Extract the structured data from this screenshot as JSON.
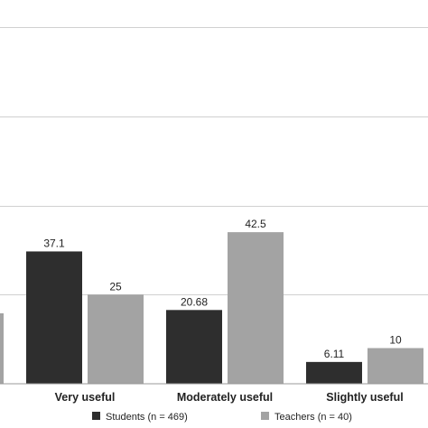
{
  "chart_data": {
    "type": "bar",
    "categories": [
      "Very useful",
      "Moderately useful",
      "Slightly useful"
    ],
    "series": [
      {
        "name": "Students (n = 469)",
        "values": [
          37.1,
          20.68,
          6.11
        ],
        "labels": [
          "37.1",
          "20.68",
          "6.11"
        ],
        "color": "#2e2e2e"
      },
      {
        "name": "Teachers (n = 40)",
        "values": [
          25,
          42.5,
          10
        ],
        "labels": [
          "25",
          "42.5",
          "10"
        ],
        "color": "#a3a3a3"
      }
    ],
    "ylim": [
      0,
      100
    ],
    "grid": true,
    "legend": "bottom"
  }
}
